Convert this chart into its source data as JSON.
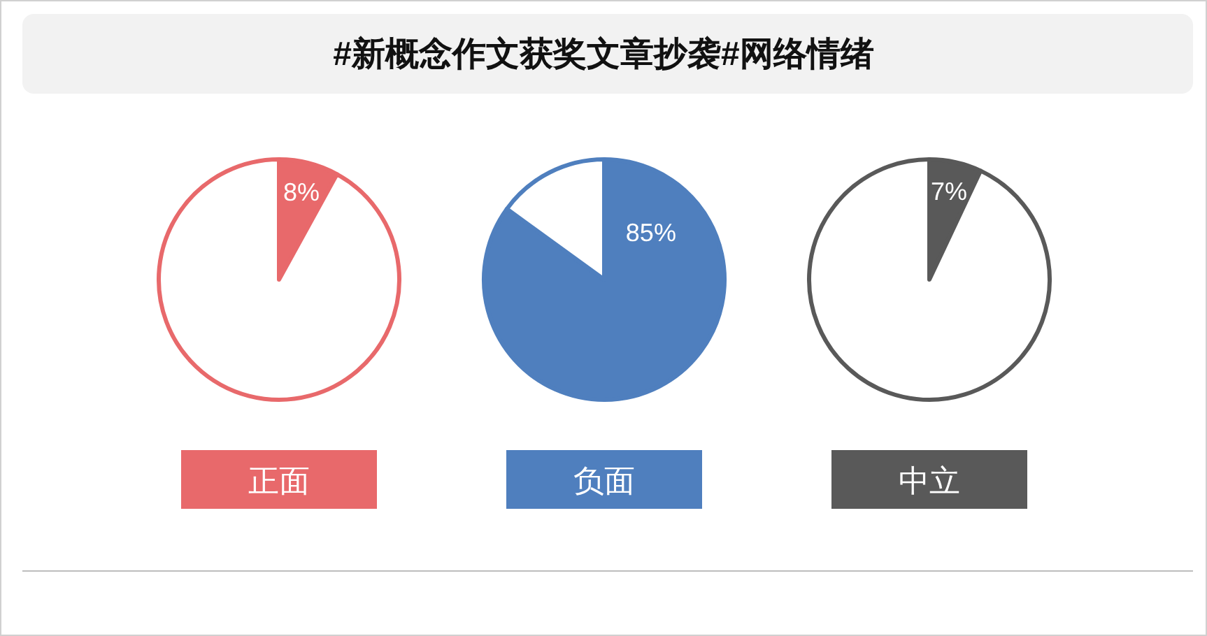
{
  "chart_data": [
    {
      "type": "other",
      "title": "#新概念作文获奖文章抄袭#网络情绪"
    },
    {
      "type": "pie",
      "title": "正面",
      "categories": [
        null,
        null
      ],
      "values": [
        8,
        92
      ],
      "colors": [
        "#e8696b",
        "#ffffff"
      ],
      "value_labels": [
        "8%",
        null
      ]
    },
    {
      "type": "pie",
      "title": "负面",
      "categories": [
        null,
        null
      ],
      "values": [
        85,
        15
      ],
      "colors": [
        "#4f7fbe",
        "#ffffff"
      ],
      "value_labels": [
        "85%",
        null
      ]
    },
    {
      "type": "pie",
      "title": "中立",
      "categories": [
        null,
        null
      ],
      "values": [
        7,
        93
      ],
      "colors": [
        "#595959",
        "#ffffff"
      ],
      "value_labels": [
        "7%",
        null
      ]
    }
  ]
}
